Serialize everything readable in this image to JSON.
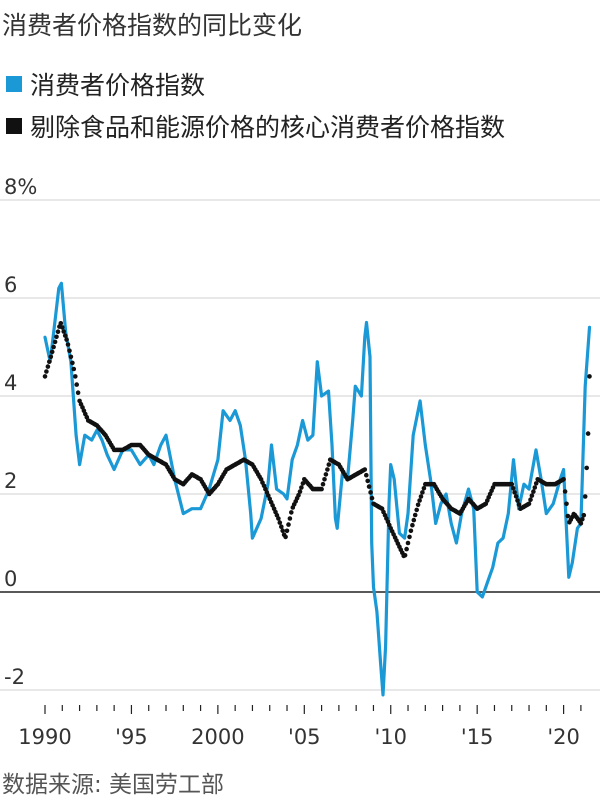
{
  "chart_data": {
    "type": "line",
    "title": "消费者价格指数的同比变化",
    "source": "数据来源: 美国劳工部",
    "y_unit": "%",
    "ylim": [
      -2,
      8
    ],
    "yticks": [
      "8%",
      "6",
      "4",
      "2",
      "0",
      "-2"
    ],
    "ytick_values": [
      8,
      6,
      4,
      2,
      0,
      -2
    ],
    "xlim": [
      1990,
      2021.7
    ],
    "xticks": [
      "1990",
      "'95",
      "2000",
      "'05",
      "'10",
      "'15",
      "'20"
    ],
    "xtick_values": [
      1990,
      1995,
      2000,
      2005,
      2010,
      2015,
      2020
    ],
    "grid": true,
    "legend_position": "top-left",
    "series": [
      {
        "name": "消费者价格指数",
        "style": "line",
        "color": "#1b99d6",
        "points": [
          [
            1990.0,
            5.2
          ],
          [
            1990.3,
            4.7
          ],
          [
            1990.6,
            5.6
          ],
          [
            1990.8,
            6.2
          ],
          [
            1990.95,
            6.3
          ],
          [
            1991.2,
            5.3
          ],
          [
            1991.5,
            4.7
          ],
          [
            1991.8,
            3.2
          ],
          [
            1992.0,
            2.6
          ],
          [
            1992.3,
            3.2
          ],
          [
            1992.7,
            3.1
          ],
          [
            1993.0,
            3.3
          ],
          [
            1993.3,
            3.1
          ],
          [
            1993.6,
            2.8
          ],
          [
            1994.0,
            2.5
          ],
          [
            1994.5,
            2.9
          ],
          [
            1995.0,
            2.9
          ],
          [
            1995.5,
            2.6
          ],
          [
            1996.0,
            2.8
          ],
          [
            1996.3,
            2.6
          ],
          [
            1996.7,
            3.0
          ],
          [
            1997.0,
            3.2
          ],
          [
            1997.5,
            2.3
          ],
          [
            1998.0,
            1.6
          ],
          [
            1998.5,
            1.7
          ],
          [
            1999.0,
            1.7
          ],
          [
            1999.5,
            2.1
          ],
          [
            2000.0,
            2.7
          ],
          [
            2000.3,
            3.7
          ],
          [
            2000.7,
            3.5
          ],
          [
            2001.0,
            3.7
          ],
          [
            2001.3,
            3.4
          ],
          [
            2001.6,
            2.7
          ],
          [
            2001.9,
            1.6
          ],
          [
            2002.0,
            1.1
          ],
          [
            2002.5,
            1.5
          ],
          [
            2002.9,
            2.2
          ],
          [
            2003.1,
            3.0
          ],
          [
            2003.4,
            2.1
          ],
          [
            2003.8,
            2.0
          ],
          [
            2004.0,
            1.9
          ],
          [
            2004.3,
            2.7
          ],
          [
            2004.6,
            3.0
          ],
          [
            2004.9,
            3.5
          ],
          [
            2005.2,
            3.1
          ],
          [
            2005.5,
            3.2
          ],
          [
            2005.75,
            4.7
          ],
          [
            2006.0,
            4.0
          ],
          [
            2006.4,
            4.1
          ],
          [
            2006.6,
            3.0
          ],
          [
            2006.8,
            1.5
          ],
          [
            2006.9,
            1.3
          ],
          [
            2007.2,
            2.4
          ],
          [
            2007.5,
            2.3
          ],
          [
            2007.8,
            3.5
          ],
          [
            2007.95,
            4.2
          ],
          [
            2008.3,
            4.0
          ],
          [
            2008.5,
            5.2
          ],
          [
            2008.6,
            5.5
          ],
          [
            2008.8,
            4.8
          ],
          [
            2008.9,
            1.0
          ],
          [
            2009.0,
            0.1
          ],
          [
            2009.2,
            -0.4
          ],
          [
            2009.4,
            -1.4
          ],
          [
            2009.55,
            -2.1
          ],
          [
            2009.7,
            -1.1
          ],
          [
            2009.9,
            1.8
          ],
          [
            2010.0,
            2.6
          ],
          [
            2010.2,
            2.3
          ],
          [
            2010.5,
            1.2
          ],
          [
            2010.8,
            1.1
          ],
          [
            2011.0,
            1.6
          ],
          [
            2011.3,
            3.2
          ],
          [
            2011.7,
            3.9
          ],
          [
            2012.0,
            3.0
          ],
          [
            2012.3,
            2.3
          ],
          [
            2012.6,
            1.4
          ],
          [
            2012.9,
            1.8
          ],
          [
            2013.2,
            2.0
          ],
          [
            2013.5,
            1.4
          ],
          [
            2013.8,
            1.0
          ],
          [
            2014.1,
            1.6
          ],
          [
            2014.5,
            2.1
          ],
          [
            2014.8,
            1.7
          ],
          [
            2015.0,
            0.0
          ],
          [
            2015.3,
            -0.1
          ],
          [
            2015.6,
            0.2
          ],
          [
            2015.9,
            0.5
          ],
          [
            2016.2,
            1.0
          ],
          [
            2016.5,
            1.1
          ],
          [
            2016.8,
            1.6
          ],
          [
            2017.1,
            2.7
          ],
          [
            2017.4,
            1.7
          ],
          [
            2017.7,
            2.2
          ],
          [
            2018.0,
            2.1
          ],
          [
            2018.4,
            2.9
          ],
          [
            2018.7,
            2.3
          ],
          [
            2019.0,
            1.6
          ],
          [
            2019.4,
            1.8
          ],
          [
            2019.8,
            2.3
          ],
          [
            2020.0,
            2.5
          ],
          [
            2020.3,
            0.3
          ],
          [
            2020.5,
            0.6
          ],
          [
            2020.8,
            1.3
          ],
          [
            2021.0,
            1.4
          ],
          [
            2021.25,
            4.2
          ],
          [
            2021.5,
            5.4
          ]
        ]
      },
      {
        "name": "剔除食品和能源价格的核心消费者价格指数",
        "style": "dots",
        "color": "#111111",
        "points": [
          [
            1990.0,
            4.4
          ],
          [
            1990.5,
            5.0
          ],
          [
            1990.9,
            5.5
          ],
          [
            1991.3,
            5.1
          ],
          [
            1991.7,
            4.5
          ],
          [
            1992.0,
            3.9
          ],
          [
            1992.5,
            3.5
          ],
          [
            1993.0,
            3.4
          ],
          [
            1993.5,
            3.2
          ],
          [
            1994.0,
            2.9
          ],
          [
            1994.5,
            2.9
          ],
          [
            1995.0,
            3.0
          ],
          [
            1995.5,
            3.0
          ],
          [
            1996.0,
            2.8
          ],
          [
            1996.5,
            2.7
          ],
          [
            1997.0,
            2.6
          ],
          [
            1997.5,
            2.3
          ],
          [
            1998.0,
            2.2
          ],
          [
            1998.5,
            2.4
          ],
          [
            1999.0,
            2.3
          ],
          [
            1999.5,
            2.0
          ],
          [
            2000.0,
            2.2
          ],
          [
            2000.5,
            2.5
          ],
          [
            2001.0,
            2.6
          ],
          [
            2001.5,
            2.7
          ],
          [
            2002.0,
            2.6
          ],
          [
            2002.5,
            2.3
          ],
          [
            2003.0,
            1.9
          ],
          [
            2003.5,
            1.5
          ],
          [
            2003.9,
            1.1
          ],
          [
            2004.3,
            1.7
          ],
          [
            2004.7,
            2.0
          ],
          [
            2005.0,
            2.3
          ],
          [
            2005.5,
            2.1
          ],
          [
            2006.0,
            2.1
          ],
          [
            2006.5,
            2.7
          ],
          [
            2007.0,
            2.6
          ],
          [
            2007.5,
            2.3
          ],
          [
            2008.0,
            2.4
          ],
          [
            2008.5,
            2.5
          ],
          [
            2009.0,
            1.8
          ],
          [
            2009.5,
            1.7
          ],
          [
            2010.0,
            1.3
          ],
          [
            2010.4,
            1.0
          ],
          [
            2010.8,
            0.7
          ],
          [
            2011.2,
            1.3
          ],
          [
            2011.6,
            1.8
          ],
          [
            2012.0,
            2.2
          ],
          [
            2012.5,
            2.2
          ],
          [
            2013.0,
            1.9
          ],
          [
            2013.5,
            1.7
          ],
          [
            2014.0,
            1.6
          ],
          [
            2014.5,
            1.9
          ],
          [
            2015.0,
            1.7
          ],
          [
            2015.5,
            1.8
          ],
          [
            2016.0,
            2.2
          ],
          [
            2016.5,
            2.2
          ],
          [
            2017.0,
            2.2
          ],
          [
            2017.5,
            1.7
          ],
          [
            2018.0,
            1.8
          ],
          [
            2018.5,
            2.3
          ],
          [
            2019.0,
            2.2
          ],
          [
            2019.5,
            2.2
          ],
          [
            2020.0,
            2.3
          ],
          [
            2020.3,
            1.4
          ],
          [
            2020.6,
            1.6
          ],
          [
            2021.0,
            1.4
          ],
          [
            2021.2,
            1.6
          ],
          [
            2021.4,
            3.0
          ],
          [
            2021.5,
            4.4
          ]
        ]
      }
    ]
  }
}
